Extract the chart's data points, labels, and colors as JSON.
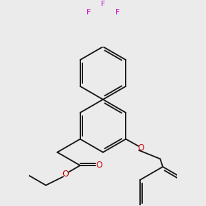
{
  "bg_color": "#ebebeb",
  "bond_color": "#1a1a1a",
  "O_color": "#cc0000",
  "F_color": "#cc00cc",
  "bond_width": 1.4,
  "figsize": [
    3.0,
    3.0
  ],
  "dpi": 100,
  "xlim": [
    -2.8,
    2.8
  ],
  "ylim": [
    -3.2,
    2.8
  ]
}
